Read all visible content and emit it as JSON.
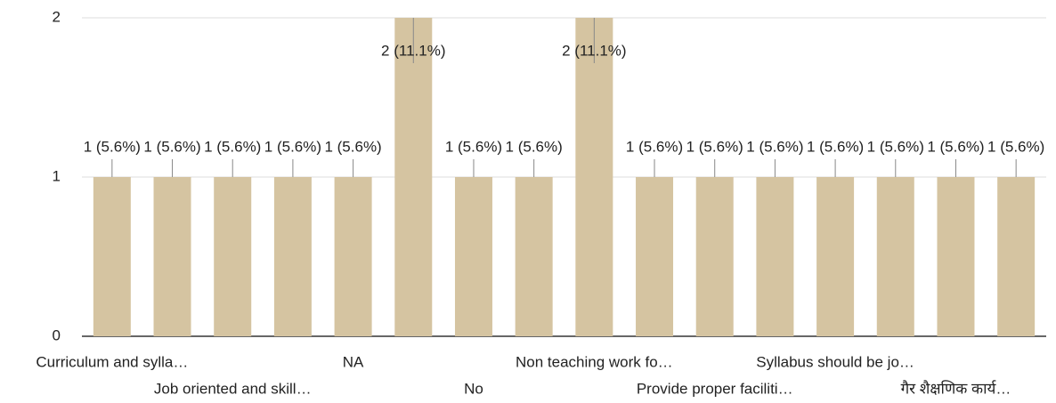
{
  "chart_data": {
    "type": "bar",
    "categories": [
      "Curriculum and sylla…",
      null,
      "Job oriented and skill…",
      null,
      "NA",
      null,
      "No",
      null,
      "Non teaching work fo…",
      null,
      "Provide proper faciliti…",
      null,
      "Syllabus should be jo…",
      null,
      "गैर शैक्षणिक कार्य…",
      null
    ],
    "values": [
      1,
      1,
      1,
      1,
      1,
      2,
      1,
      1,
      2,
      1,
      1,
      1,
      1,
      1,
      1,
      1
    ],
    "value_labels": [
      "1 (5.6%)",
      "1 (5.6%)",
      "1 (5.6%)",
      "1 (5.6%)",
      "1 (5.6%)",
      "2 (11.1%)",
      "1 (5.6%)",
      "1 (5.6%)",
      "2 (11.1%)",
      "1 (5.6%)",
      "1 (5.6%)",
      "1 (5.6%)",
      "1 (5.6%)",
      "1 (5.6%)",
      "1 (5.6%)",
      "1 (5.6%)"
    ],
    "color": "#d5c4a1",
    "ylim": [
      0,
      2
    ],
    "yticks": [
      0,
      1,
      2
    ],
    "grid": true
  }
}
